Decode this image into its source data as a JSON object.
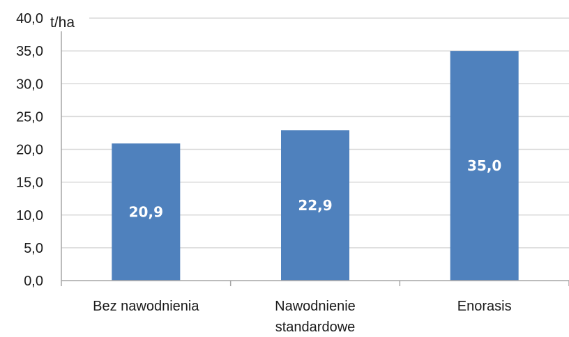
{
  "chart_data": {
    "type": "bar",
    "categories": [
      [
        "Bez nawodnienia"
      ],
      [
        "Nawodnienie",
        "standardowe"
      ],
      [
        "Enorasis"
      ]
    ],
    "values": [
      20.9,
      22.9,
      35.0
    ],
    "data_labels": [
      "20,9",
      "22,9",
      "35,0"
    ],
    "unit_label": "t/ha",
    "ylim": [
      0,
      40
    ],
    "yticks": [
      "0,0",
      "5,0",
      "10,0",
      "15,0",
      "20,0",
      "25,0",
      "30,0",
      "35,0",
      "40,0"
    ],
    "ytick_values": [
      0,
      5,
      10,
      15,
      20,
      25,
      30,
      35,
      40
    ],
    "grid": true,
    "bar_color": "#4f81bd",
    "grid_color": "#d9d9d9",
    "axis_color": "#a6a6a6"
  }
}
